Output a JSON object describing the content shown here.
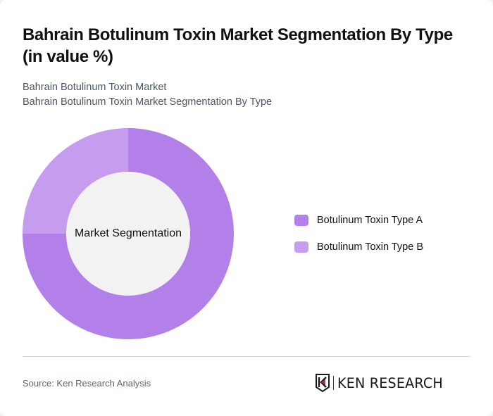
{
  "header": {
    "title": "Bahrain Botulinum Toxin Market Segmentation By Type (in value %)",
    "subtitle_line1": "Bahrain Botulinum Toxin Market",
    "subtitle_line2": "Bahrain Botulinum Toxin Market Segmentation By Type"
  },
  "chart": {
    "center_label": "Market Segmentation"
  },
  "legend": {
    "items": [
      {
        "label": "Botulinum Toxin Type A",
        "color": "#b37fe9"
      },
      {
        "label": "Botulinum Toxin Type B",
        "color": "#c59cee"
      }
    ]
  },
  "footer": {
    "source": "Source: Ken Research Analysis",
    "logo_text": "KEN RESEARCH"
  },
  "chart_data": {
    "type": "pie",
    "subtype": "donut",
    "title": "Bahrain Botulinum Toxin Market Segmentation By Type (in value %)",
    "center_label": "Market Segmentation",
    "categories": [
      "Botulinum Toxin Type A",
      "Botulinum Toxin Type B"
    ],
    "values": [
      75,
      25
    ],
    "colors": [
      "#b37fe9",
      "#c59cee"
    ],
    "start_angle": "12 o'clock, clockwise",
    "legend_position": "right"
  }
}
